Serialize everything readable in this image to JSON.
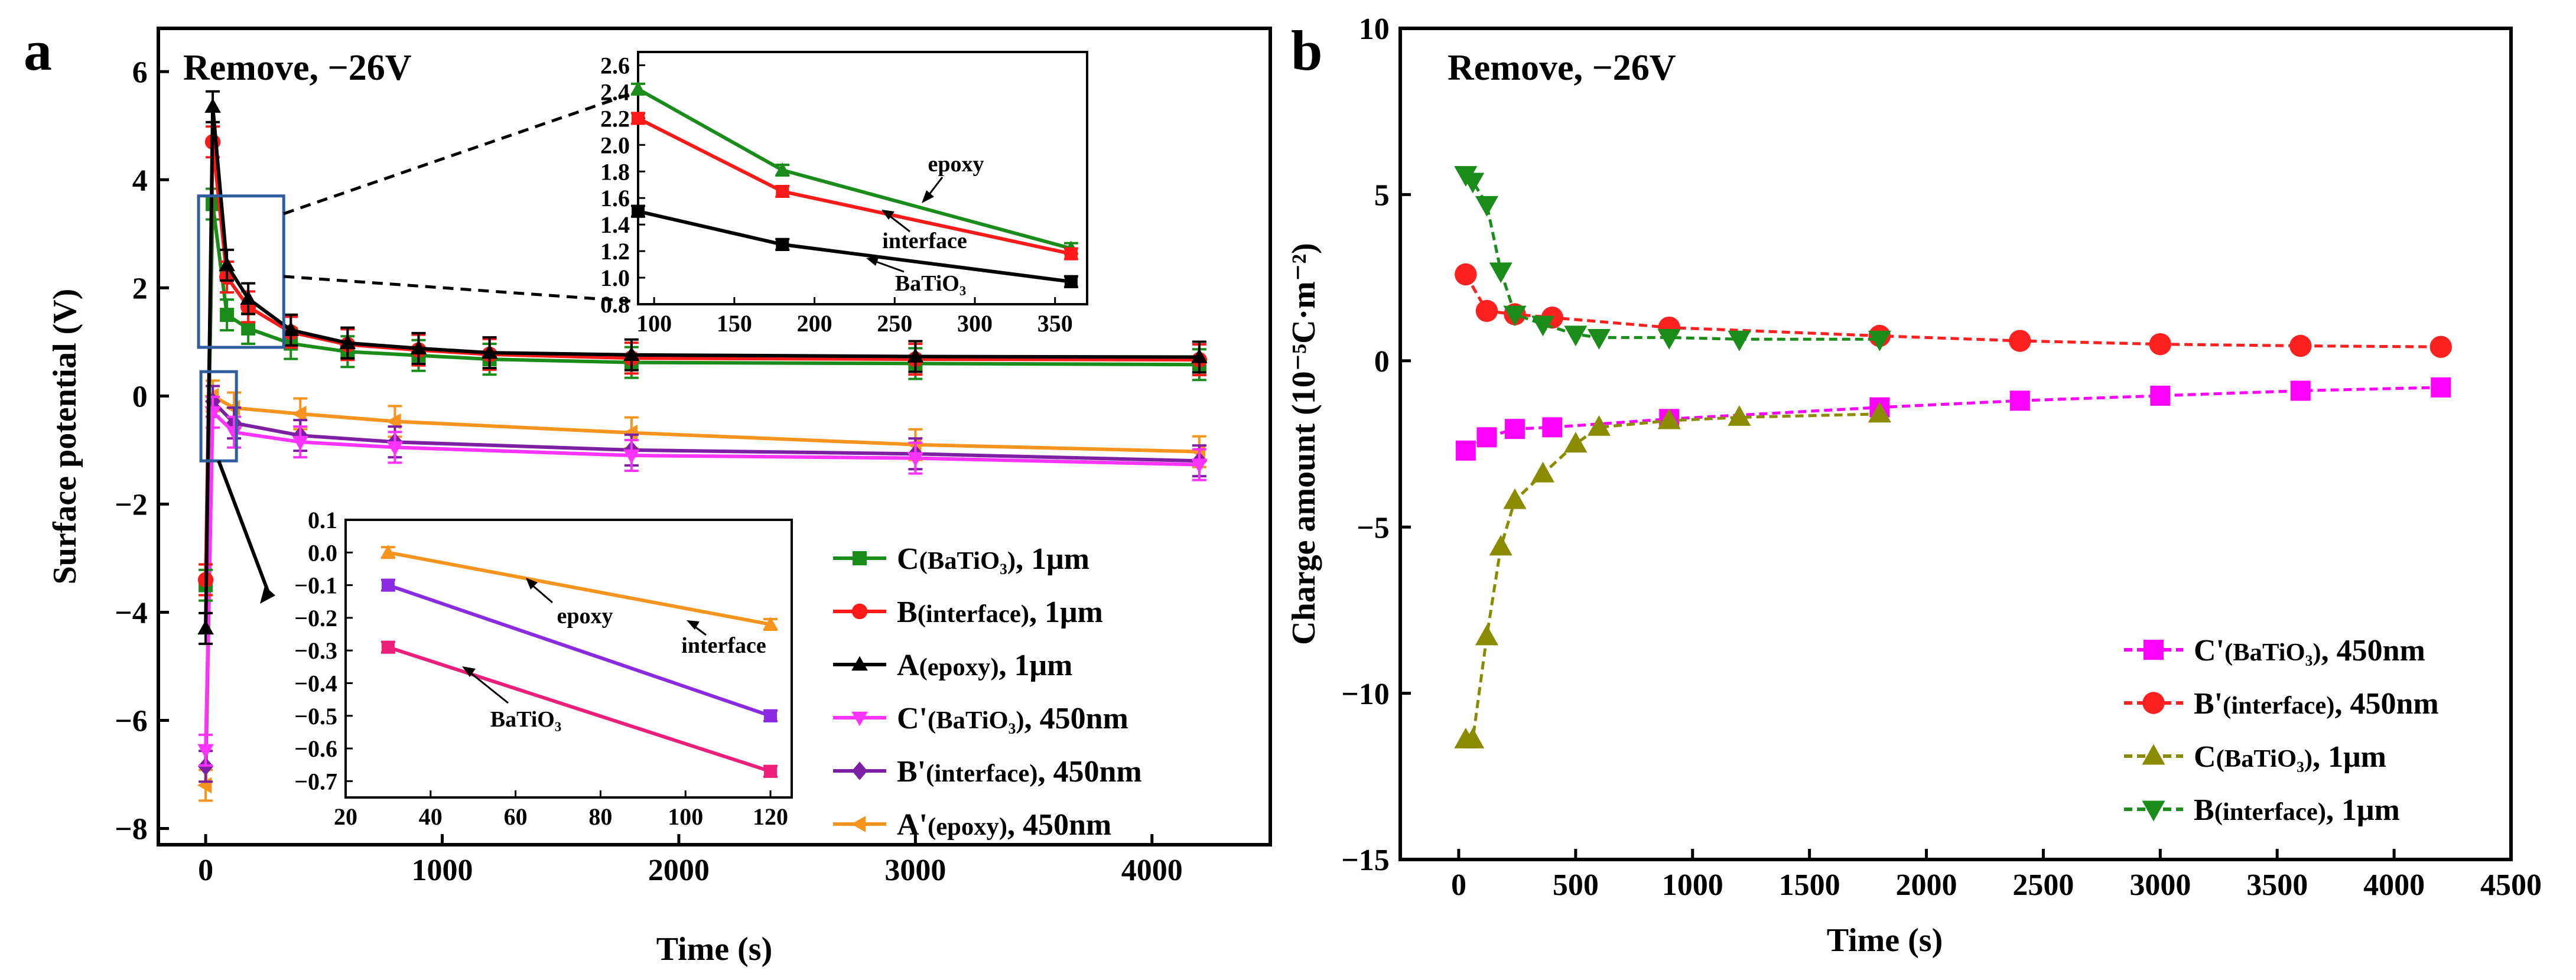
{
  "chart_data": [
    {
      "panel": "a",
      "type": "line",
      "annotation": "Remove, −26V",
      "xlabel": "Time (s)",
      "ylabel": "Surface potential (V)",
      "xlim": [
        -200,
        4500
      ],
      "ylim": [
        -8.3,
        6.8
      ],
      "xticks": [
        0,
        1000,
        2000,
        3000,
        4000
      ],
      "yticks": [
        -8,
        -6,
        -4,
        -2,
        0,
        2,
        4,
        6
      ],
      "series": [
        {
          "name": "A'(epoxy), 450nm",
          "label_main": "A'",
          "label_sub": "(epoxy)",
          "label_tail": ", 450nm",
          "color": "#f7941d",
          "marker": "tri-left",
          "x": [
            0,
            30,
            120,
            400,
            800,
            1800,
            3000,
            4200
          ],
          "y": [
            -7.2,
            0.0,
            -0.22,
            -0.33,
            -0.47,
            -0.68,
            -0.9,
            -1.03
          ]
        },
        {
          "name": "B'(interface), 450nm",
          "label_main": "B'",
          "label_sub": "(interface)",
          "label_tail": ", 450nm",
          "color": "#7d1fa3",
          "marker": "diamond",
          "x": [
            0,
            30,
            120,
            400,
            800,
            1800,
            3000,
            4200
          ],
          "y": [
            -6.85,
            -0.1,
            -0.5,
            -0.73,
            -0.85,
            -1.0,
            -1.07,
            -1.2
          ]
        },
        {
          "name": "C'(BaTiO3), 450nm",
          "label_main": "C'",
          "label_sub": "(BaTiO₃)",
          "label_tail": ", 450nm",
          "color": "#ff33ff",
          "marker": "tri-down",
          "x": [
            0,
            30,
            120,
            400,
            800,
            1800,
            3000,
            4200
          ],
          "y": [
            -6.55,
            -0.3,
            -0.67,
            -0.85,
            -0.95,
            -1.1,
            -1.15,
            -1.27
          ]
        },
        {
          "name": "C(BaTiO3), 1μm",
          "label_main": "C",
          "label_sub": "(BaTiO₃)",
          "label_tail": ", 1μm",
          "color": "#1a8c1a",
          "marker": "square",
          "x": [
            0,
            30,
            90,
            180,
            360,
            600,
            900,
            1200,
            1800,
            3000,
            4200
          ],
          "y": [
            -3.5,
            3.55,
            1.5,
            1.25,
            0.97,
            0.82,
            0.75,
            0.68,
            0.62,
            0.6,
            0.58
          ]
        },
        {
          "name": "B(interface), 1μm",
          "label_main": "B",
          "label_sub": "(interface)",
          "label_tail": ", 1μm",
          "color": "#ff1a1a",
          "marker": "circle",
          "x": [
            0,
            30,
            90,
            180,
            360,
            600,
            900,
            1200,
            1800,
            3000,
            4200
          ],
          "y": [
            -3.4,
            4.7,
            2.2,
            1.65,
            1.18,
            0.95,
            0.85,
            0.77,
            0.7,
            0.68,
            0.67
          ]
        },
        {
          "name": "A(epoxy), 1μm",
          "label_main": "A",
          "label_sub": "(epoxy)",
          "label_tail": ", 1μm",
          "color": "#000000",
          "marker": "tri-up",
          "x": [
            0,
            30,
            90,
            180,
            360,
            600,
            900,
            1200,
            1800,
            3000,
            4200
          ],
          "y": [
            -4.3,
            5.35,
            2.42,
            1.8,
            1.22,
            0.98,
            0.88,
            0.8,
            0.76,
            0.73,
            0.72
          ]
        }
      ],
      "legend_order": [
        "C(BaTiO3), 1μm",
        "B(interface), 1μm",
        "A(epoxy), 1μm",
        "C'(BaTiO3), 450nm",
        "B'(interface), 450nm",
        "A'(epoxy), 450nm"
      ],
      "legend_position": "bottom-right",
      "insets": [
        {
          "position": "top",
          "xlim": [
            90,
            370
          ],
          "ylim": [
            0.8,
            2.7
          ],
          "xticks": [
            100,
            150,
            200,
            250,
            300,
            350
          ],
          "yticks": [
            0.8,
            1.0,
            1.2,
            1.4,
            1.6,
            1.8,
            2.0,
            2.2,
            2.4,
            2.6
          ],
          "series": [
            {
              "name": "epoxy",
              "color": "#1a8c1a",
              "marker": "tri-up",
              "x": [
                90,
                180,
                360
              ],
              "y": [
                2.42,
                1.81,
                1.22
              ]
            },
            {
              "name": "interface",
              "color": "#ff1a1a",
              "marker": "square",
              "x": [
                90,
                180,
                360
              ],
              "y": [
                2.2,
                1.65,
                1.18
              ]
            },
            {
              "name": "BaTiO₃",
              "color": "#000000",
              "marker": "square",
              "x": [
                90,
                180,
                360
              ],
              "y": [
                1.5,
                1.25,
                0.97
              ]
            }
          ],
          "annotations": [
            "epoxy",
            "interface",
            "BaTiO₃"
          ]
        },
        {
          "position": "bottom",
          "xlim": [
            20,
            125
          ],
          "ylim": [
            -0.75,
            0.1
          ],
          "xticks": [
            20,
            40,
            60,
            80,
            100,
            120
          ],
          "yticks": [
            0.1,
            0.0,
            -0.1,
            -0.2,
            -0.3,
            -0.4,
            -0.5,
            -0.6,
            -0.7
          ],
          "series": [
            {
              "name": "epoxy",
              "color": "#f7941d",
              "marker": "tri-up",
              "x": [
                30,
                120
              ],
              "y": [
                0.0,
                -0.22
              ]
            },
            {
              "name": "interface",
              "color": "#8a2be2",
              "marker": "square",
              "x": [
                30,
                120
              ],
              "y": [
                -0.1,
                -0.5
              ]
            },
            {
              "name": "BaTiO₃",
              "color": "#ee1f7a",
              "marker": "square",
              "x": [
                30,
                120
              ],
              "y": [
                -0.29,
                -0.67
              ]
            }
          ],
          "annotations": [
            "epoxy",
            "interface",
            "BaTiO₃"
          ]
        }
      ]
    },
    {
      "panel": "b",
      "type": "line",
      "annotation": "Remove, −26V",
      "xlabel": "Time (s)",
      "ylabel": "Charge amount (10⁻⁵C·m⁻²)",
      "xlim": [
        -250,
        4500
      ],
      "ylim": [
        -15,
        10
      ],
      "xticks": [
        0,
        500,
        1000,
        1500,
        2000,
        2500,
        3000,
        3500,
        4000,
        4500
      ],
      "yticks": [
        -15,
        -10,
        -5,
        0,
        5,
        10
      ],
      "series": [
        {
          "name": "C'(BaTiO3), 450nm",
          "label_main": "C'",
          "label_sub": "(BaTiO₃)",
          "label_tail": ", 450nm",
          "color": "#ff00ff",
          "marker": "square",
          "x": [
            30,
            120,
            240,
            400,
            900,
            1800,
            2400,
            3000,
            3600,
            4200
          ],
          "y": [
            -2.7,
            -2.3,
            -2.05,
            -2.0,
            -1.75,
            -1.4,
            -1.2,
            -1.05,
            -0.9,
            -0.8
          ]
        },
        {
          "name": "B'(interface), 450nm",
          "label_main": "B'",
          "label_sub": "(interface)",
          "label_tail": ", 450nm",
          "color": "#ff2020",
          "marker": "circle",
          "x": [
            30,
            120,
            240,
            400,
            900,
            1800,
            2400,
            3000,
            3600,
            4200
          ],
          "y": [
            2.6,
            1.5,
            1.4,
            1.3,
            1.0,
            0.75,
            0.6,
            0.5,
            0.45,
            0.42
          ]
        },
        {
          "name": "C(BaTiO3), 1μm",
          "label_main": "C",
          "label_sub": "(BaTiO₃)",
          "label_tail": ", 1μm",
          "color": "#8b8b00",
          "marker": "tri-up",
          "x": [
            30,
            60,
            120,
            180,
            240,
            360,
            500,
            600,
            900,
            1200,
            1800
          ],
          "y": [
            -11.4,
            -11.4,
            -8.3,
            -5.6,
            -4.2,
            -3.4,
            -2.5,
            -2.0,
            -1.8,
            -1.7,
            -1.6
          ]
        },
        {
          "name": "B(interface), 1μm",
          "label_main": "B",
          "label_sub": "(interface)",
          "label_tail": ", 1μm",
          "color": "#1a8c1a",
          "marker": "tri-down",
          "x": [
            30,
            60,
            120,
            180,
            240,
            360,
            500,
            600,
            900,
            1200,
            1800
          ],
          "y": [
            5.6,
            5.4,
            4.7,
            2.7,
            1.4,
            1.1,
            0.8,
            0.7,
            0.7,
            0.65,
            0.65
          ]
        }
      ],
      "legend_order": [
        "C'(BaTiO3), 450nm",
        "B'(interface), 450nm",
        "C(BaTiO3), 1μm",
        "B(interface), 1μm"
      ],
      "legend_position": "bottom-right"
    }
  ]
}
